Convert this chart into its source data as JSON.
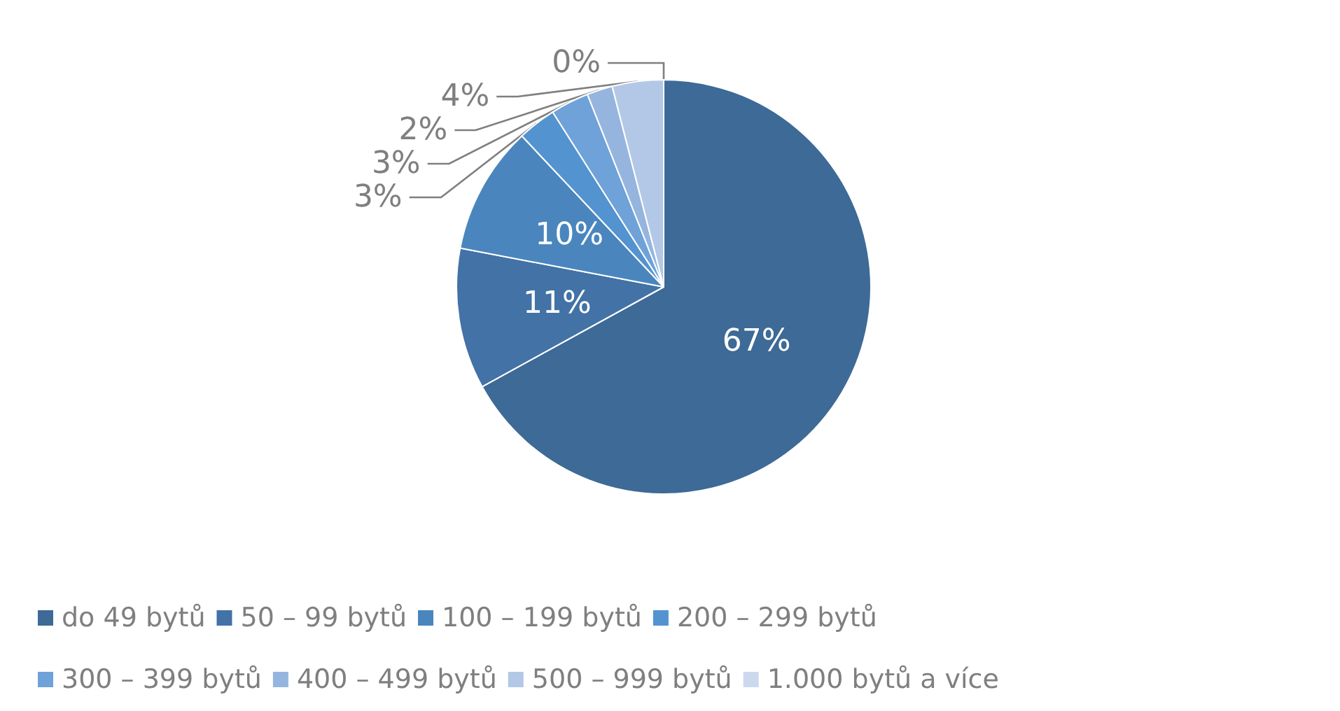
{
  "chart_data": {
    "type": "pie",
    "categories": [
      "do 49 bytů",
      "50 – 99 bytů",
      "100 – 199 bytů",
      "200 – 299 bytů",
      "300 – 399 bytů",
      "400 – 499 bytů",
      "500 – 999 bytů",
      "1.000 bytů a více"
    ],
    "values": [
      67,
      11,
      10,
      3,
      3,
      2,
      4,
      0
    ],
    "colors": [
      "#3d6a96",
      "#4272a6",
      "#4a86bd",
      "#5393cf",
      "#6ea2d8",
      "#95b5de",
      "#b2c8e6",
      "#cbd9ee"
    ],
    "value_labels": [
      "67%",
      "11%",
      "10%",
      "3%",
      "3%",
      "2%",
      "4%",
      "0%"
    ],
    "legend": "bottom"
  }
}
